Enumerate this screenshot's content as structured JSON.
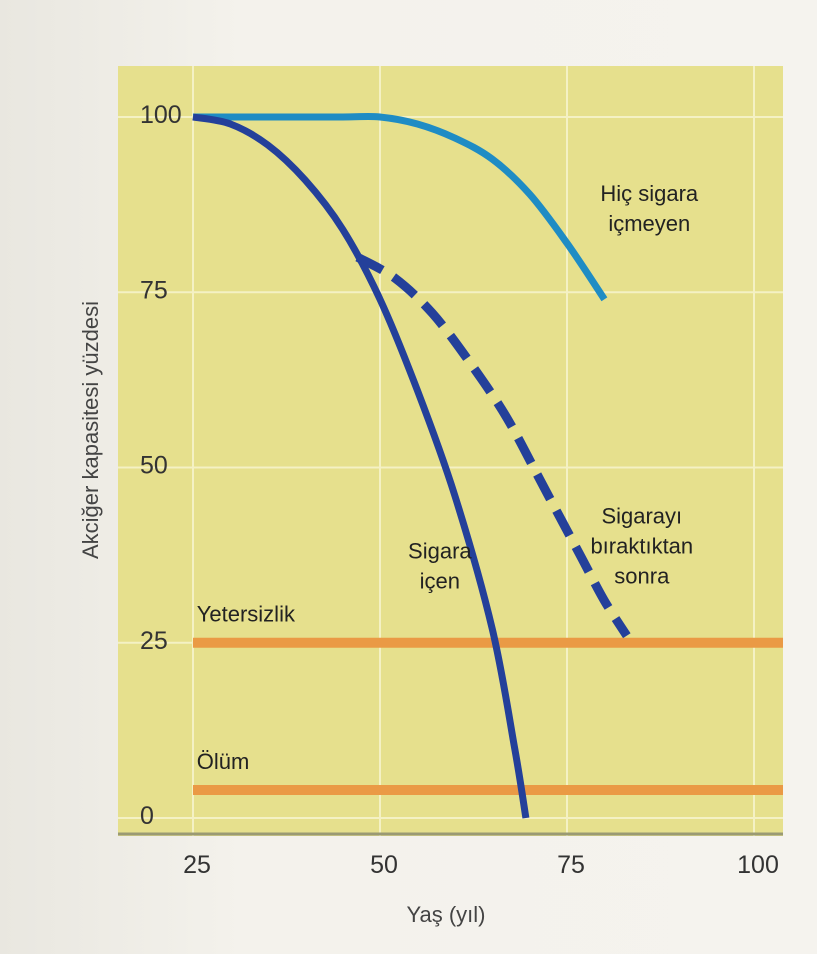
{
  "chart_data": {
    "type": "line",
    "xlabel": "Yaş (yıl)",
    "ylabel": "Akciğer kapasitesi yüzdesi",
    "xlim": [
      25,
      100
    ],
    "ylim": [
      0,
      100
    ],
    "x_ticks": [
      "25",
      "50",
      "75",
      "100"
    ],
    "y_ticks": [
      "0",
      "25",
      "50",
      "75",
      "100"
    ],
    "grid": true,
    "colors": {
      "plot_background": "#e6e08d",
      "grid": "#f4f1c4",
      "never_smoked": "#1f8cc4",
      "smoker": "#24409a",
      "quit": "#24409a",
      "threshold": "#ea9a45"
    },
    "series": [
      {
        "key": "never_smoked",
        "style": "solid",
        "points": [
          [
            25,
            100
          ],
          [
            35,
            100
          ],
          [
            45,
            100
          ],
          [
            50,
            100
          ],
          [
            55,
            99
          ],
          [
            60,
            97
          ],
          [
            65,
            94
          ],
          [
            70,
            89
          ],
          [
            75,
            82
          ],
          [
            80,
            74
          ]
        ]
      },
      {
        "key": "smoker",
        "style": "solid",
        "points": [
          [
            25,
            100
          ],
          [
            30,
            99
          ],
          [
            35,
            96
          ],
          [
            40,
            91
          ],
          [
            45,
            84
          ],
          [
            50,
            74
          ],
          [
            55,
            61
          ],
          [
            60,
            46
          ],
          [
            65,
            27
          ],
          [
            68,
            10
          ],
          [
            69.5,
            0
          ]
        ]
      },
      {
        "key": "quit",
        "style": "dashed",
        "points": [
          [
            47,
            80
          ],
          [
            52,
            77
          ],
          [
            57,
            72
          ],
          [
            62,
            65
          ],
          [
            67,
            57
          ],
          [
            72,
            47
          ],
          [
            77,
            37
          ],
          [
            80,
            31
          ],
          [
            83,
            26
          ]
        ]
      }
    ],
    "threshold_lines": [
      {
        "y": 25,
        "x": [
          25,
          100
        ]
      },
      {
        "y": 4,
        "x": [
          25,
          100
        ]
      }
    ],
    "annotations": [
      {
        "id": "never-smoked-label",
        "lines": [
          "Hiç sigara",
          "içmeyen"
        ],
        "x": 86,
        "y": 88
      },
      {
        "id": "quit-label",
        "lines": [
          "Sigarayı",
          "bıraktıktan",
          "sonra"
        ],
        "x": 85,
        "y": 42
      },
      {
        "id": "smoker-label",
        "lines": [
          "Sigara",
          "içen"
        ],
        "x": 58,
        "y": 37
      },
      {
        "id": "insufficiency-label",
        "lines": [
          "Yetersizlik"
        ],
        "x": 25.5,
        "y": 28
      },
      {
        "id": "death-label",
        "lines": [
          "Ölüm"
        ],
        "x": 25.5,
        "y": 7
      }
    ]
  }
}
